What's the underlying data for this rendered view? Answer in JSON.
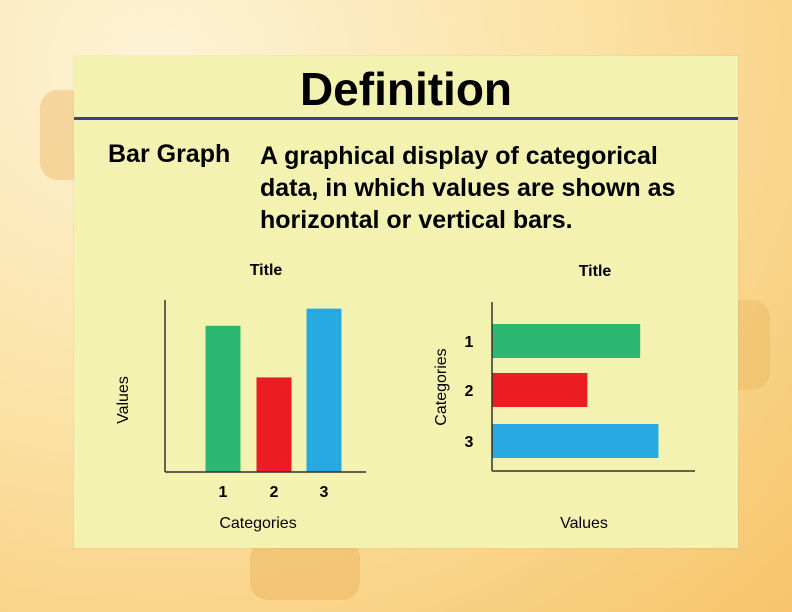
{
  "slide": {
    "title": "Definition",
    "term": "Bar Graph",
    "definition": "A graphical display of categorical data, in which values are shown as horizontal or vertical bars."
  },
  "colors": {
    "panel": "#f4f2b0",
    "rule": "#3b3f8f",
    "green": "#2db872",
    "red": "#ec1c24",
    "blue": "#27aae1"
  },
  "chart_data": [
    {
      "type": "bar",
      "orientation": "vertical",
      "title": "Title",
      "xlabel": "Categories",
      "ylabel": "Values",
      "categories": [
        "1",
        "2",
        "3"
      ],
      "values": [
        8.5,
        5.5,
        9.5
      ],
      "colors": [
        "#2db872",
        "#ec1c24",
        "#27aae1"
      ],
      "ylim": [
        0,
        10
      ],
      "grid": false
    },
    {
      "type": "bar",
      "orientation": "horizontal",
      "title": "Title",
      "xlabel": "Values",
      "ylabel": "Categories",
      "categories": [
        "1",
        "2",
        "3"
      ],
      "values": [
        7.3,
        4.7,
        8.2
      ],
      "colors": [
        "#2db872",
        "#ec1c24",
        "#27aae1"
      ],
      "xlim": [
        0,
        10
      ],
      "grid": false
    }
  ]
}
